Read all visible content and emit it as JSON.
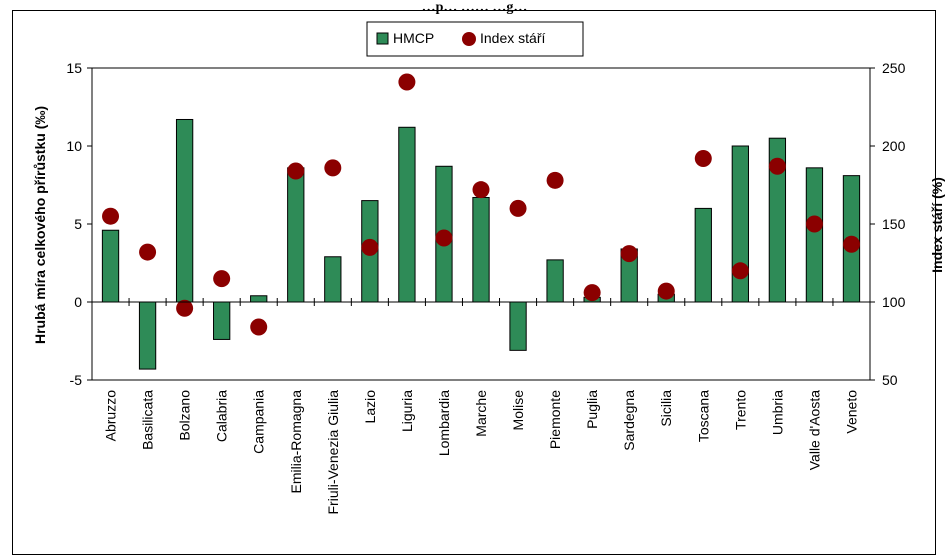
{
  "chart_data": {
    "type": "bar",
    "title": "…p… …… …g…",
    "categories": [
      "Abruzzo",
      "Basilicata",
      "Bolzano",
      "Calabria",
      "Campania",
      "Emilia-Romagna",
      "Friuli-Venezia Giulia",
      "Lazio",
      "Liguria",
      "Lombardia",
      "Marche",
      "Molise",
      "Piemonte",
      "Puglia",
      "Sardegna",
      "Sicilia",
      "Toscana",
      "Trento",
      "Umbria",
      "Valle d'Aosta",
      "Veneto"
    ],
    "series": [
      {
        "name": "HMCP",
        "kind": "bar",
        "axis": "left",
        "color": "#2e8b57",
        "values": [
          4.6,
          -4.3,
          11.7,
          -2.4,
          0.4,
          8.6,
          2.9,
          6.5,
          11.2,
          8.7,
          6.7,
          -3.1,
          2.7,
          0.3,
          3.4,
          0.5,
          6.0,
          10.0,
          10.5,
          8.6,
          8.1
        ]
      },
      {
        "name": "Index stáří",
        "kind": "dot",
        "axis": "right",
        "color": "#8b0000",
        "values": [
          155,
          132,
          96,
          115,
          84,
          184,
          186,
          135,
          241,
          141,
          172,
          160,
          178,
          106,
          131,
          107,
          192,
          120,
          187,
          150,
          137
        ]
      }
    ],
    "ylabel": "Hrubá míra celkového přírůstku (‰)",
    "y2label": "Index stáří (%)",
    "ylim": [
      -5,
      15
    ],
    "y2lim": [
      50,
      250
    ],
    "yticks": [
      -5,
      0,
      5,
      10,
      15
    ],
    "y2ticks": [
      50,
      100,
      150,
      200,
      250
    ],
    "legend_position": "top-center",
    "grid": false
  }
}
